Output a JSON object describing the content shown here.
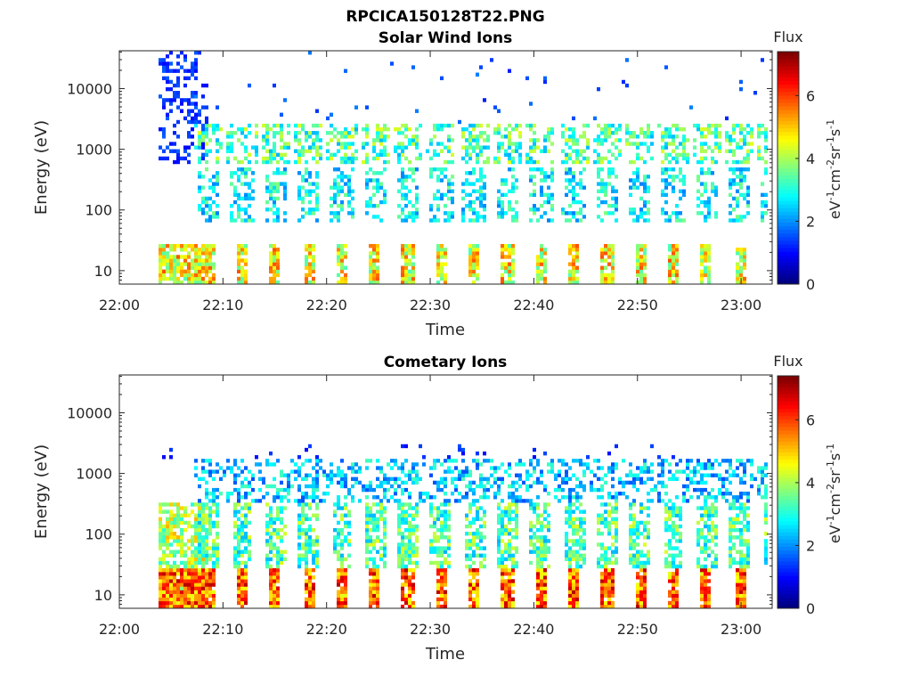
{
  "figure_title": "RPCICA150128T22.PNG",
  "chart_data": [
    {
      "type": "heatmap",
      "title": "Solar Wind Ions",
      "xlabel": "Time",
      "ylabel": "Energy (eV)",
      "x_ticks": [
        "22:00",
        "22:10",
        "22:20",
        "22:30",
        "22:40",
        "22:50",
        "23:00"
      ],
      "y_scale": "log",
      "y_ticks": [
        "10",
        "100",
        "1000",
        "10000"
      ],
      "colorbar": {
        "label": "Flux",
        "unit_main": "eV",
        "unit_parts": [
          [
            "eV",
            "-1"
          ],
          [
            "cm",
            "-2"
          ],
          [
            "sr",
            "-1"
          ],
          [
            "s",
            "-1"
          ]
        ],
        "ticks": [
          "0",
          "2",
          "4",
          "6"
        ],
        "range": [
          0,
          7.4
        ]
      },
      "grid": false
    },
    {
      "type": "heatmap",
      "title": "Cometary Ions",
      "xlabel": "Time",
      "ylabel": "Energy (eV)",
      "x_ticks": [
        "22:00",
        "22:10",
        "22:20",
        "22:30",
        "22:40",
        "22:50",
        "23:00"
      ],
      "y_scale": "log",
      "y_ticks": [
        "10",
        "100",
        "1000",
        "10000"
      ],
      "colorbar": {
        "label": "Flux",
        "unit_parts": [
          [
            "eV",
            "-1"
          ],
          [
            "cm",
            "-2"
          ],
          [
            "sr",
            "-1"
          ],
          [
            "s",
            "-1"
          ]
        ],
        "ticks": [
          "0",
          "2",
          "4",
          "6"
        ],
        "range": [
          0,
          7.4
        ]
      },
      "grid": false
    }
  ]
}
